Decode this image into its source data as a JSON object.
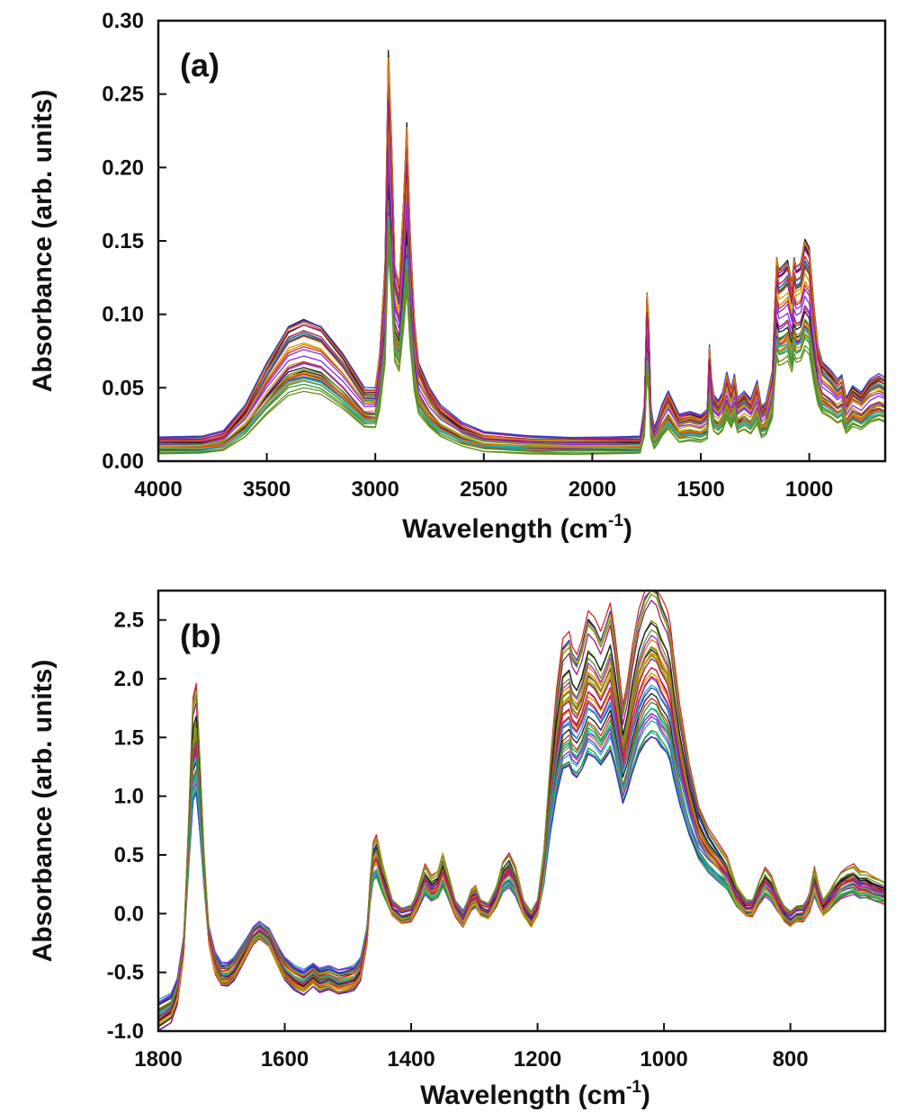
{
  "palette": [
    "#1a1a1a",
    "#d42a2a",
    "#2e9a2e",
    "#2a3fc7",
    "#8a2be2",
    "#17b3b3",
    "#c8a400",
    "#e07b00",
    "#a0157a",
    "#6b8e23"
  ],
  "chart_data": [
    {
      "type": "line",
      "panel_label": "(a)",
      "xlabel_text": "Wavelength (cm",
      "xlabel_sup": "-1",
      "xlabel_close": ")",
      "ylabel": "Absorbance (arb. units)",
      "xlim": [
        4000,
        650
      ],
      "ylim": [
        0,
        0.3
      ],
      "xticks": [
        4000,
        3500,
        3000,
        2500,
        2000,
        1500,
        1000
      ],
      "xtick_labels": [
        "4000",
        "3500",
        "3000",
        "2500",
        "2000",
        "1500",
        "1000"
      ],
      "yticks": [
        0.0,
        0.05,
        0.1,
        0.15,
        0.2,
        0.25,
        0.3
      ],
      "ytick_labels": [
        "0.00",
        "0.05",
        "0.10",
        "0.15",
        "0.20",
        "0.25",
        "0.30"
      ],
      "series_count": 40,
      "mean_spectrum": {
        "x": [
          4000,
          3800,
          3700,
          3600,
          3500,
          3400,
          3330,
          3250,
          3150,
          3050,
          3000,
          2980,
          2955,
          2940,
          2925,
          2910,
          2890,
          2870,
          2855,
          2840,
          2820,
          2800,
          2750,
          2700,
          2600,
          2500,
          2300,
          2100,
          1900,
          1780,
          1760,
          1748,
          1740,
          1730,
          1715,
          1700,
          1680,
          1650,
          1620,
          1600,
          1550,
          1500,
          1470,
          1460,
          1450,
          1440,
          1420,
          1400,
          1380,
          1360,
          1345,
          1330,
          1300,
          1270,
          1240,
          1220,
          1200,
          1170,
          1160,
          1150,
          1140,
          1120,
          1100,
          1080,
          1070,
          1060,
          1040,
          1020,
          1000,
          980,
          960,
          940,
          900,
          870,
          850,
          830,
          800,
          760,
          720,
          680,
          650
        ],
        "y": [
          0.012,
          0.012,
          0.015,
          0.03,
          0.055,
          0.076,
          0.08,
          0.076,
          0.06,
          0.04,
          0.04,
          0.06,
          0.11,
          0.23,
          0.18,
          0.11,
          0.1,
          0.145,
          0.19,
          0.13,
          0.08,
          0.055,
          0.04,
          0.03,
          0.02,
          0.015,
          0.013,
          0.012,
          0.012,
          0.012,
          0.03,
          0.095,
          0.08,
          0.03,
          0.018,
          0.022,
          0.03,
          0.038,
          0.03,
          0.025,
          0.027,
          0.025,
          0.028,
          0.065,
          0.045,
          0.036,
          0.033,
          0.038,
          0.05,
          0.04,
          0.048,
          0.034,
          0.038,
          0.034,
          0.045,
          0.03,
          0.032,
          0.05,
          0.085,
          0.115,
          0.108,
          0.11,
          0.113,
          0.1,
          0.115,
          0.11,
          0.112,
          0.125,
          0.12,
          0.09,
          0.065,
          0.055,
          0.05,
          0.045,
          0.048,
          0.035,
          0.042,
          0.038,
          0.045,
          0.048,
          0.046
        ]
      }
    },
    {
      "type": "line",
      "panel_label": "(b)",
      "xlabel_text": "Wavelength (cm",
      "xlabel_sup": "-1",
      "xlabel_close": ")",
      "ylabel": "Absorbance (arb. units)",
      "xlim": [
        1800,
        650
      ],
      "ylim": [
        -1.0,
        2.75
      ],
      "xticks": [
        1800,
        1600,
        1400,
        1200,
        1000,
        800
      ],
      "xtick_labels": [
        "1800",
        "1600",
        "1400",
        "1200",
        "1000",
        "800"
      ],
      "yticks": [
        -1.0,
        -0.5,
        0.0,
        0.5,
        1.0,
        1.5,
        2.0,
        2.5
      ],
      "ytick_labels": [
        "-1.0",
        "-0.5",
        "0.0",
        "0.5",
        "1.0",
        "1.5",
        "2.0",
        "2.5"
      ],
      "series_count": 40,
      "mean_spectrum": {
        "x": [
          1800,
          1780,
          1770,
          1760,
          1752,
          1745,
          1740,
          1735,
          1728,
          1720,
          1710,
          1700,
          1690,
          1680,
          1665,
          1650,
          1640,
          1625,
          1610,
          1600,
          1585,
          1570,
          1555,
          1545,
          1530,
          1515,
          1500,
          1490,
          1480,
          1470,
          1465,
          1460,
          1455,
          1445,
          1430,
          1415,
          1400,
          1390,
          1378,
          1368,
          1358,
          1350,
          1342,
          1330,
          1318,
          1305,
          1298,
          1290,
          1278,
          1265,
          1255,
          1245,
          1235,
          1222,
          1210,
          1200,
          1190,
          1180,
          1170,
          1160,
          1150,
          1145,
          1138,
          1130,
          1120,
          1110,
          1100,
          1092,
          1085,
          1078,
          1070,
          1065,
          1058,
          1050,
          1040,
          1030,
          1020,
          1012,
          1005,
          1000,
          995,
          990,
          985,
          975,
          960,
          945,
          930,
          915,
          900,
          885,
          870,
          860,
          850,
          840,
          830,
          820,
          810,
          800,
          790,
          780,
          770,
          762,
          755,
          748,
          740,
          730,
          720,
          710,
          700,
          690,
          680,
          670,
          660,
          650
        ],
        "y": [
          -0.92,
          -0.85,
          -0.7,
          -0.3,
          0.6,
          1.45,
          1.55,
          1.1,
          0.4,
          -0.2,
          -0.45,
          -0.55,
          -0.55,
          -0.5,
          -0.35,
          -0.2,
          -0.15,
          -0.22,
          -0.4,
          -0.5,
          -0.58,
          -0.62,
          -0.55,
          -0.6,
          -0.58,
          -0.62,
          -0.6,
          -0.58,
          -0.5,
          -0.2,
          0.2,
          0.45,
          0.5,
          0.3,
          0.05,
          -0.02,
          0.0,
          0.12,
          0.3,
          0.22,
          0.25,
          0.38,
          0.25,
          0.05,
          -0.05,
          0.12,
          0.15,
          0.05,
          0.02,
          0.15,
          0.32,
          0.38,
          0.28,
          0.05,
          -0.05,
          0.05,
          0.4,
          1.0,
          1.5,
          1.85,
          1.9,
          1.8,
          1.75,
          1.85,
          2.05,
          2.0,
          1.9,
          2.0,
          2.1,
          1.9,
          1.6,
          1.4,
          1.55,
          1.8,
          2.05,
          2.2,
          2.28,
          2.25,
          2.15,
          2.1,
          2.05,
          1.95,
          1.75,
          1.4,
          1.0,
          0.7,
          0.55,
          0.45,
          0.35,
          0.15,
          0.05,
          0.05,
          0.18,
          0.28,
          0.22,
          0.1,
          0.0,
          -0.05,
          0.0,
          0.0,
          0.1,
          0.28,
          0.15,
          0.05,
          0.1,
          0.18,
          0.25,
          0.28,
          0.3,
          0.25,
          0.25,
          0.22,
          0.2,
          0.18
        ]
      }
    }
  ]
}
